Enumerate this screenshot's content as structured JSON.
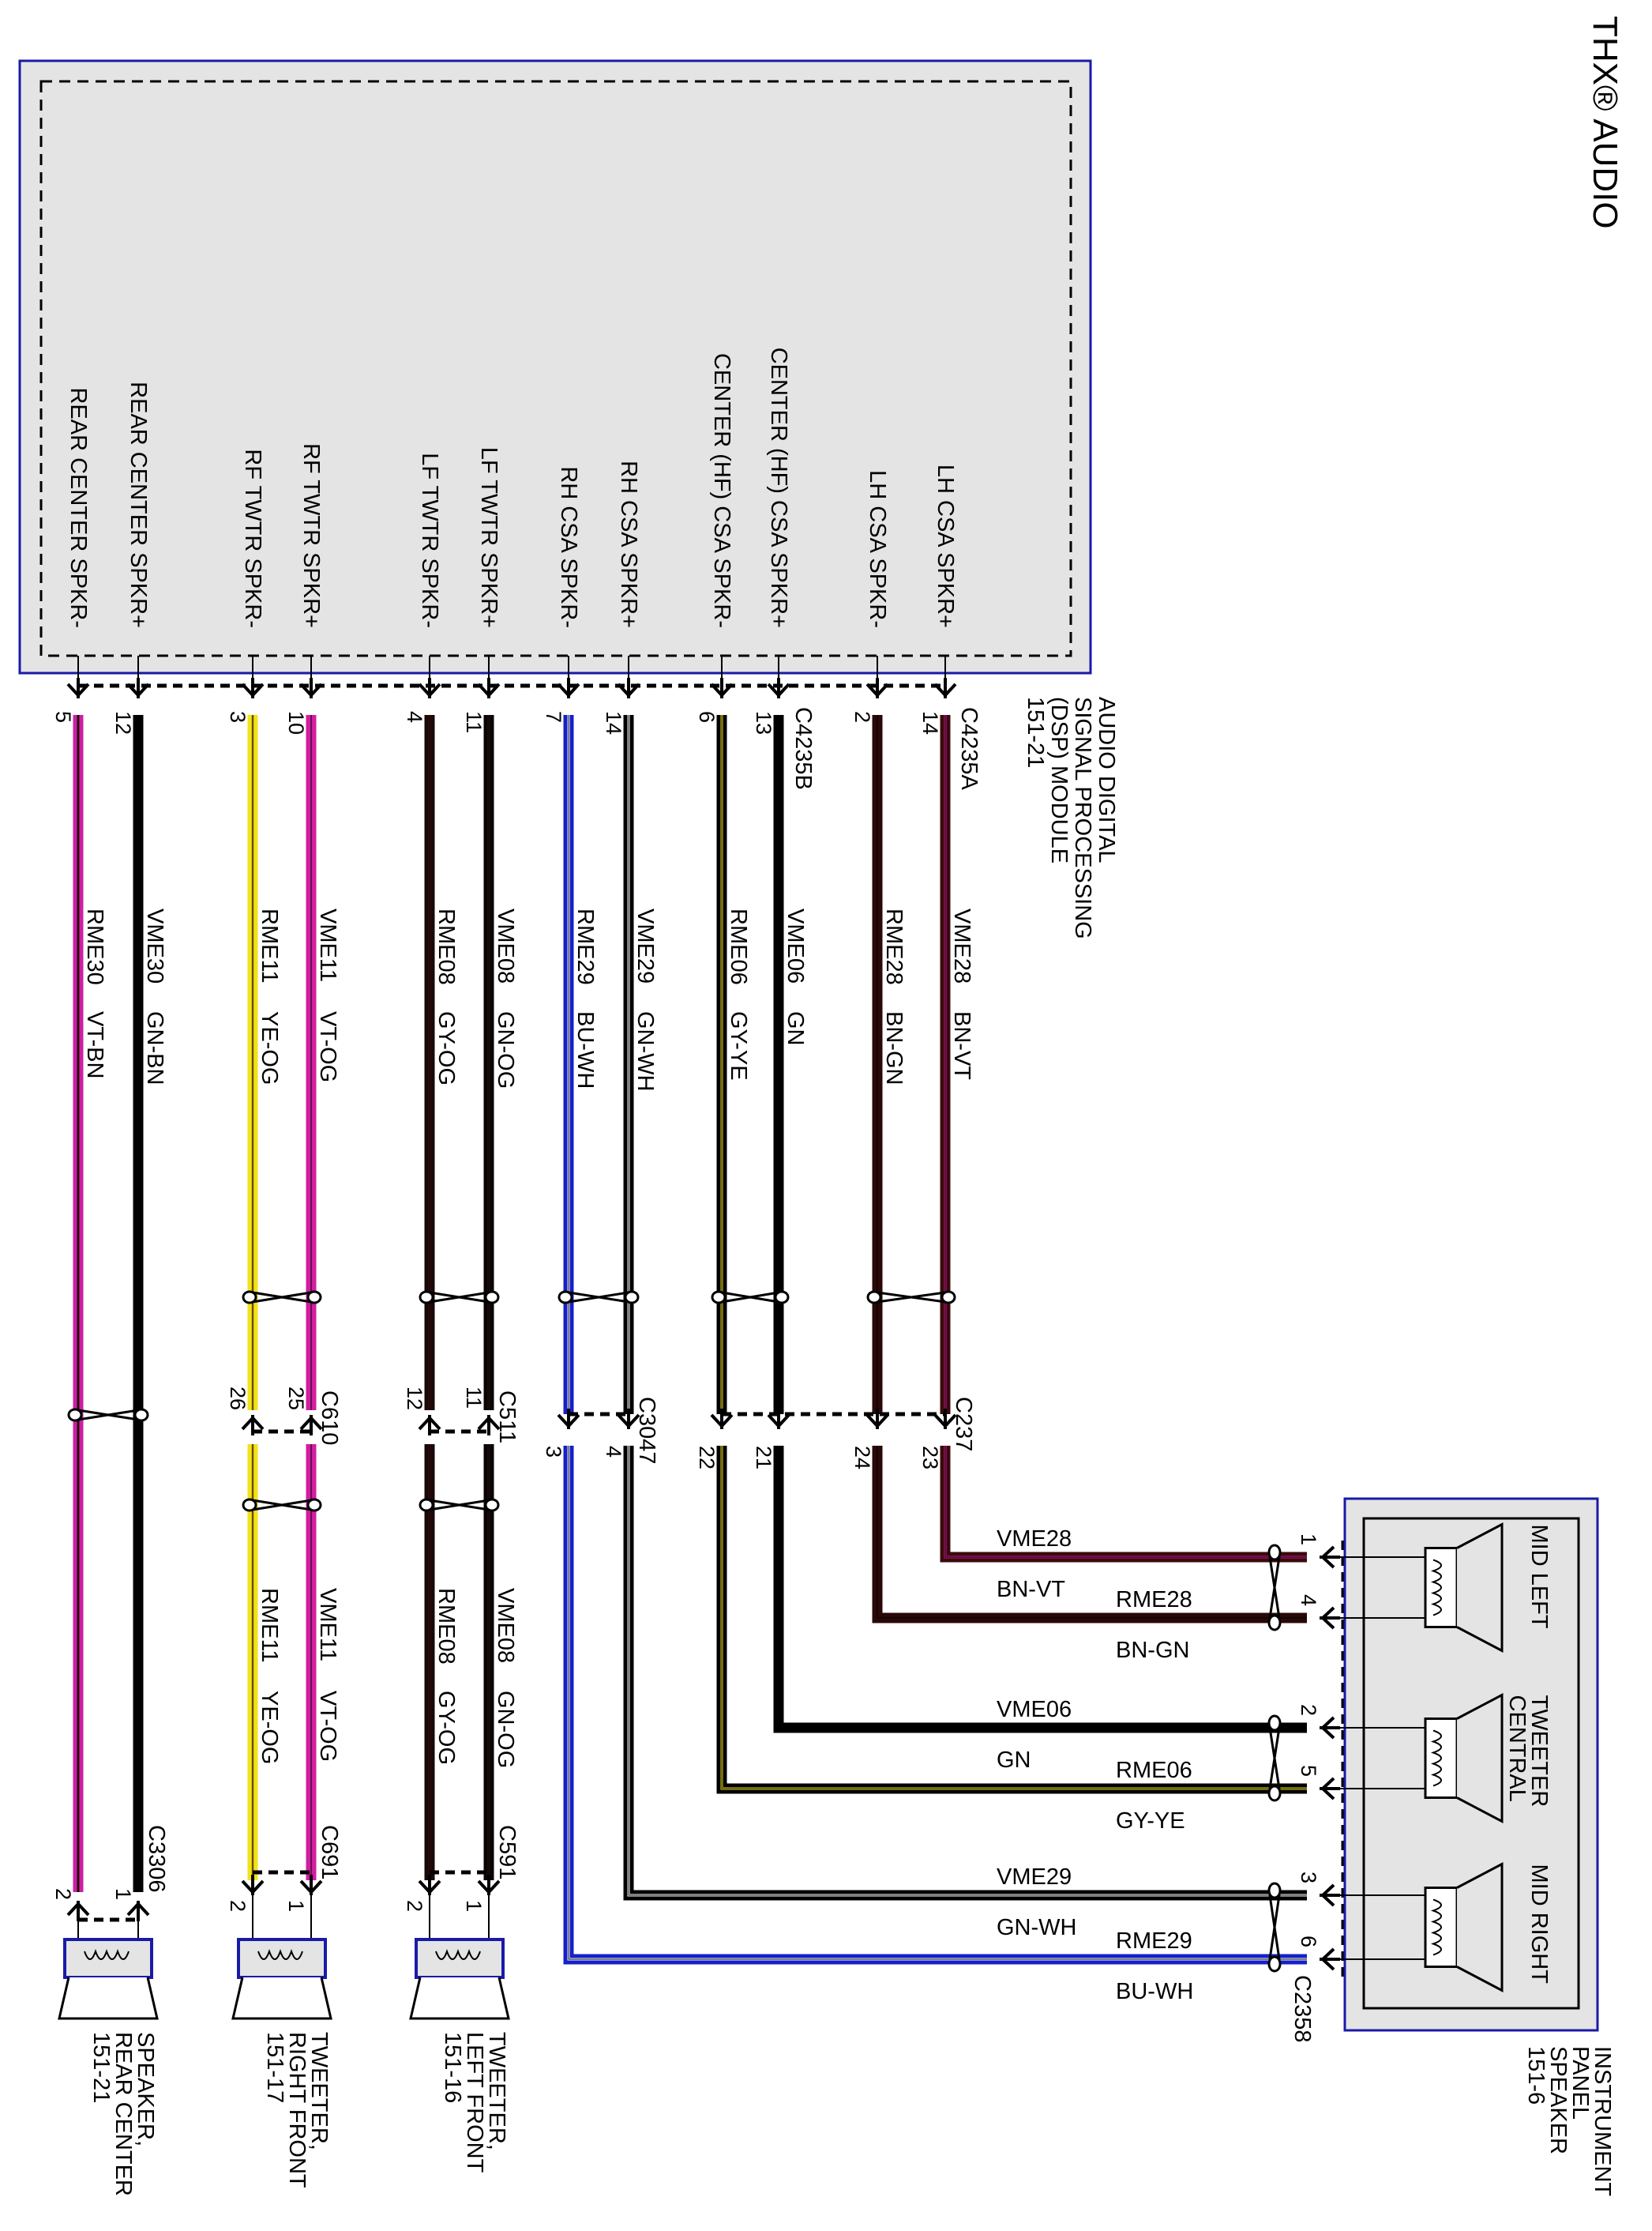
{
  "title": "THX® AUDIO",
  "module": {
    "name_lines": [
      "AUDIO DIGITAL",
      "SIGNAL PROCESSING",
      "(DSP) MODULE",
      "151-21"
    ],
    "connector_a": "C4235A",
    "connector_b": "C4235B"
  },
  "wires": [
    {
      "label": "REAR CENTER SPKR-",
      "pin": "5",
      "circuit": "RME30",
      "color_code": "VT-BN",
      "base": "#cc1fa6",
      "stripe": "#3a0c0c",
      "inline_pin": "",
      "end_pin": "2"
    },
    {
      "label": "REAR CENTER SPKR+",
      "pin": "12",
      "circuit": "VME30",
      "color_code": "GN-BN",
      "base": "#000000",
      "stripe": "#000000",
      "inline_pin": "",
      "end_pin": "1"
    },
    {
      "label": "RF TWTR SPKR-",
      "pin": "3",
      "circuit": "RME11",
      "color_code": "YE-OG",
      "base": "#f2e21a",
      "stripe": "#c8a000",
      "inline_pin": "26",
      "end_pin": "2"
    },
    {
      "label": "RF TWTR SPKR+",
      "pin": "10",
      "circuit": "VME11",
      "color_code": "VT-OG",
      "base": "#d21ea0",
      "stripe": "#d21ea0",
      "inline_pin": "25",
      "end_pin": "1"
    },
    {
      "label": "LF TWTR SPKR-",
      "pin": "4",
      "circuit": "RME08",
      "color_code": "GY-OG",
      "base": "#1a0808",
      "stripe": "#3a1010",
      "inline_pin": "12",
      "end_pin": "2"
    },
    {
      "label": "LF TWTR SPKR+",
      "pin": "11",
      "circuit": "VME08",
      "color_code": "GN-OG",
      "base": "#0a0505",
      "stripe": "#2a1010",
      "inline_pin": "11",
      "end_pin": "1"
    },
    {
      "label": "RH CSA SPKR-",
      "pin": "7",
      "circuit": "RME29",
      "color_code": "BU-WH",
      "base": "#1420c8",
      "stripe": "#ffffff",
      "inline_pin": "3",
      "end_pin": "6"
    },
    {
      "label": "RH CSA SPKR+",
      "pin": "14",
      "circuit": "VME29",
      "color_code": "GN-WH",
      "base": "#000000",
      "stripe": "#ffffff",
      "inline_pin": "4",
      "end_pin": "3"
    },
    {
      "label": "CENTER (HF) CSA SPKR-",
      "pin": "6",
      "circuit": "RME06",
      "color_code": "GY-YE",
      "base": "#000000",
      "stripe": "#e8d820",
      "inline_pin": "22",
      "end_pin": "5"
    },
    {
      "label": "CENTER (HF) CSA SPKR+",
      "pin": "13",
      "circuit": "VME06",
      "color_code": "GN",
      "base": "#000000",
      "stripe": "#000000",
      "inline_pin": "21",
      "end_pin": "2"
    },
    {
      "label": "LH CSA SPKR-",
      "pin": "2",
      "circuit": "RME28",
      "color_code": "BN-GN",
      "base": "#2a0808",
      "stripe": "#2a0808",
      "inline_pin": "24",
      "end_pin": "4"
    },
    {
      "label": "LH CSA SPKR+",
      "pin": "14",
      "circuit": "VME28",
      "color_code": "BN-VT",
      "base": "#3a0a0a",
      "stripe": "#c8188e",
      "inline_pin": "23",
      "end_pin": "1"
    }
  ],
  "connectors": {
    "rear_center_end": "C3306",
    "rf_inline": "C610",
    "rf_end": "C691",
    "lf_inline": "C511",
    "lf_end": "C591",
    "rh_inline": "C3047",
    "center_lh_inline": "C237",
    "ip_end": "C2358"
  },
  "devices": {
    "rear_center": {
      "lines": [
        "SPEAKER,",
        "REAR CENTER",
        "151-21"
      ]
    },
    "right_front": {
      "lines": [
        "TWEETER,",
        "RIGHT FRONT",
        "151-17"
      ]
    },
    "left_front": {
      "lines": [
        "TWEETER,",
        "LEFT FRONT",
        "151-16"
      ]
    },
    "instrument_panel": {
      "lines": [
        "INSTRUMENT",
        "PANEL",
        "SPEAKER",
        "151-6"
      ],
      "elements": [
        "MID LEFT",
        "TWEETER CENTRAL",
        "MID RIGHT"
      ],
      "element_lines": [
        [
          "MID LEFT"
        ],
        [
          "TWEETER",
          "CENTRAL"
        ],
        [
          "MID RIGHT"
        ]
      ]
    }
  },
  "colors": {
    "module_fill": "#e4e4e4",
    "module_border": "#1a1aa8"
  }
}
